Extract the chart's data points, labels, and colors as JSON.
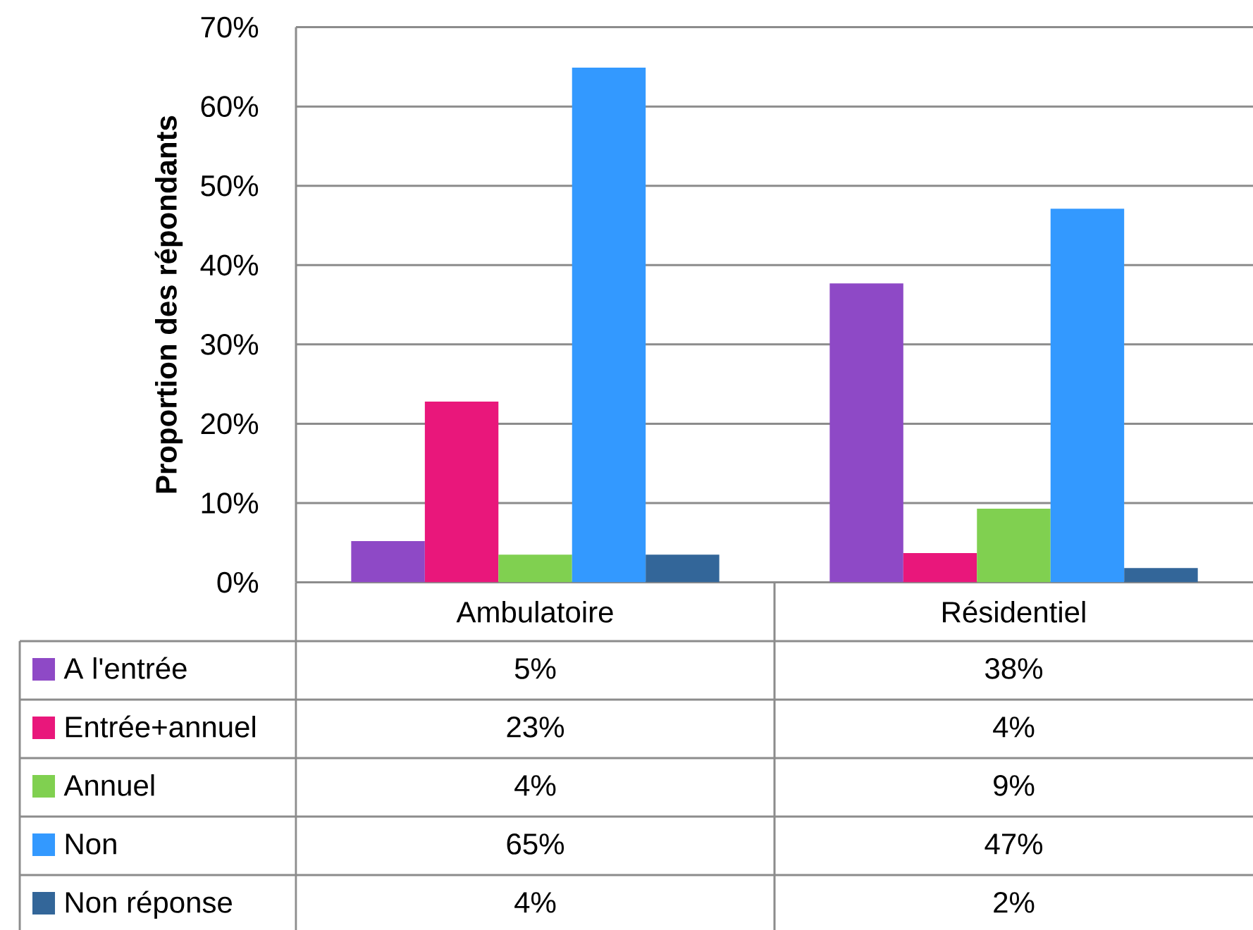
{
  "chart_data": {
    "type": "bar",
    "ylabel": "Proportion des répondants",
    "categories": [
      "Ambulatoire",
      "Résidentiel"
    ],
    "series": [
      {
        "name": "A l'entrée",
        "color": "#8E49C6",
        "values": [
          5.2,
          37.7
        ],
        "value_labels": [
          "5%",
          "38%"
        ]
      },
      {
        "name": "Entrée+annuel",
        "color": "#E9177B",
        "values": [
          22.8,
          3.7
        ],
        "value_labels": [
          "23%",
          "4%"
        ]
      },
      {
        "name": "Annuel",
        "color": "#80D050",
        "values": [
          3.5,
          9.3
        ],
        "value_labels": [
          "4%",
          "9%"
        ]
      },
      {
        "name": "Non",
        "color": "#3399FF",
        "values": [
          64.9,
          47.1
        ],
        "value_labels": [
          "65%",
          "47%"
        ]
      },
      {
        "name": "Non réponse",
        "color": "#336699",
        "values": [
          3.5,
          1.8
        ],
        "value_labels": [
          "4%",
          "2%"
        ]
      }
    ],
    "ylim": [
      0,
      70
    ],
    "yticks": [
      {
        "value": 0,
        "label": "0%"
      },
      {
        "value": 10,
        "label": "10%"
      },
      {
        "value": 20,
        "label": "20%"
      },
      {
        "value": 30,
        "label": "30%"
      },
      {
        "value": 40,
        "label": "40%"
      },
      {
        "value": 50,
        "label": "50%"
      },
      {
        "value": 60,
        "label": "60%"
      },
      {
        "value": 70,
        "label": "70%"
      }
    ],
    "grid": "y",
    "legend": "bottom"
  }
}
